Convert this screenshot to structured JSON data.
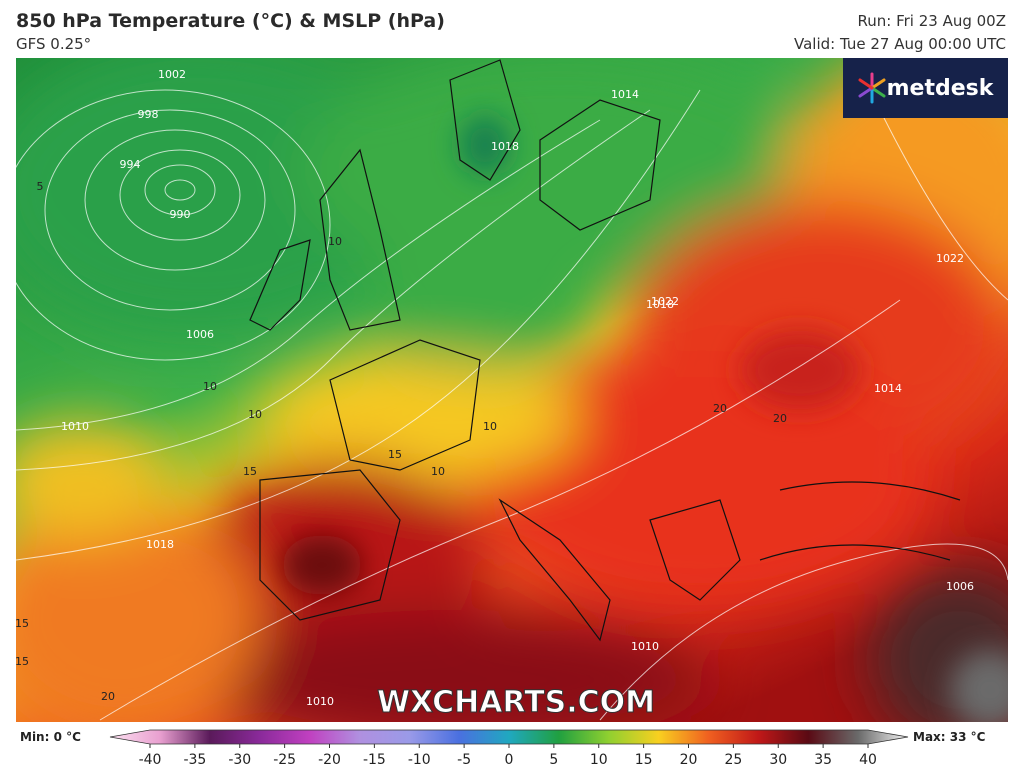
{
  "header": {
    "title": "850 hPa Temperature (°C) & MSLP (hPa)",
    "model": "GFS 0.25°",
    "run": "Run: Fri 23 Aug 00Z",
    "valid": "Valid: Tue 27 Aug 00:00 UTC"
  },
  "logo": "metdesk",
  "watermark": "WXCHARTS.COM",
  "map_labels": [
    "1002",
    "998",
    "994",
    "990",
    "1006",
    "1010",
    "1014",
    "1018",
    "1022",
    "1018",
    "1022",
    "1014",
    "1010",
    "1006",
    "1010",
    "1018",
    "10",
    "10",
    "10",
    "10",
    "15",
    "15",
    "10",
    "20",
    "20",
    "15",
    "15",
    "20",
    "5"
  ],
  "colorbar": {
    "min_label": "Min: 0 °C",
    "max_label": "Max: 33 °C",
    "ticks": [
      -40,
      -35,
      -30,
      -25,
      -20,
      -15,
      -10,
      -5,
      0,
      5,
      10,
      15,
      20,
      25,
      30,
      35,
      40
    ],
    "colors": [
      "#fbe0f0",
      "#e9a0d0",
      "#5a1a5a",
      "#8a2a9a",
      "#c040c0",
      "#b090e0",
      "#9a9ae8",
      "#4a70e0",
      "#20a8c0",
      "#20a040",
      "#90d030",
      "#f8d020",
      "#f06020",
      "#c01818",
      "#5a0a14",
      "#6a6a6a",
      "#f4f4f4"
    ]
  }
}
